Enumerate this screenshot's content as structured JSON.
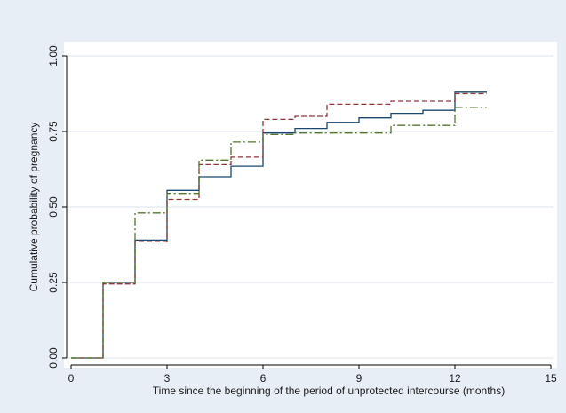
{
  "chart_data": {
    "type": "line",
    "step": true,
    "title": "",
    "xlabel": "Time since the beginning of the period of unprotected intercourse (months)",
    "ylabel": "Cumulative probability of pregnancy",
    "xlim": [
      0,
      15
    ],
    "ylim": [
      0,
      1
    ],
    "xticks": [
      0,
      3,
      6,
      9,
      12,
      15
    ],
    "yticks": [
      0,
      0.25,
      0.5,
      0.75,
      1.0
    ],
    "xtick_labels": [
      "0",
      "3",
      "6",
      "9",
      "12",
      "15"
    ],
    "ytick_labels": [
      "0.00",
      "0.25",
      "0.50",
      "0.75",
      "1.00"
    ],
    "grid": "horizontal",
    "legend": "none",
    "colors": {
      "background": "#e8eef6",
      "plot_background": "#ffffff",
      "grid": "#dde6ef",
      "axis": "#000000"
    },
    "series": [
      {
        "color": "#1a476f",
        "dash": "solid",
        "x": [
          0,
          1,
          2,
          3,
          4,
          5,
          6,
          7,
          8,
          9,
          10,
          11,
          12,
          13
        ],
        "y": [
          0.0,
          0.25,
          0.39,
          0.555,
          0.6,
          0.635,
          0.745,
          0.76,
          0.78,
          0.795,
          0.81,
          0.82,
          0.88,
          0.88
        ]
      },
      {
        "color": "#90353b",
        "dash": "dash",
        "x": [
          0,
          1,
          2,
          3,
          4,
          5,
          6,
          7,
          8,
          9,
          10,
          11,
          12,
          13
        ],
        "y": [
          0.0,
          0.245,
          0.385,
          0.525,
          0.64,
          0.665,
          0.79,
          0.8,
          0.84,
          0.84,
          0.85,
          0.85,
          0.875,
          0.875
        ]
      },
      {
        "color": "#55752f",
        "dash": "dashdot",
        "x": [
          0,
          1,
          2,
          3,
          4,
          5,
          6,
          7,
          8,
          9,
          10,
          11,
          12,
          13
        ],
        "y": [
          0.0,
          0.25,
          0.48,
          0.545,
          0.655,
          0.715,
          0.74,
          0.745,
          0.745,
          0.745,
          0.77,
          0.77,
          0.83,
          0.83
        ]
      }
    ]
  }
}
